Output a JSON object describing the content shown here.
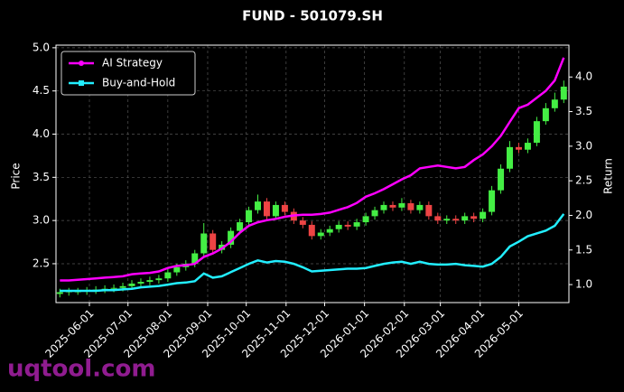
{
  "chart_data": {
    "type": "candlestick",
    "title": "FUND - 501079.SH",
    "watermark": "uqtool.com",
    "ylabel": "Price",
    "y2label": "Return",
    "up_color": "#44ee44",
    "down_color": "#ee4444",
    "grid": true,
    "legend": "upper left",
    "xlim": [
      "2025-05-06",
      "2026-06-09"
    ],
    "xticks": [
      "2025-06-01",
      "2025-07-01",
      "2025-08-01",
      "2025-09-01",
      "2025-10-01",
      "2025-11-01",
      "2025-12-01",
      "2026-01-01",
      "2026-02-01",
      "2026-03-01",
      "2026-04-01",
      "2026-05-01"
    ],
    "ylim": [
      2.05,
      5.03
    ],
    "yticks": [
      2.5,
      {
        "value": 3,
        "label": "3.0"
      },
      3.5,
      {
        "value": 4,
        "label": "4.0"
      },
      4.5,
      {
        "value": 5,
        "label": "5.0"
      }
    ],
    "y2lim": [
      0.74,
      4.46
    ],
    "y2ticks": [
      {
        "value": 1,
        "label": "1.0"
      },
      1.5,
      {
        "value": 2,
        "label": "2.0"
      },
      2.5,
      {
        "value": 3,
        "label": "3.0"
      },
      3.5,
      {
        "value": 4,
        "label": "4.0"
      }
    ],
    "x": [
      "2025-05-09",
      "2025-05-16",
      "2025-05-23",
      "2025-05-30",
      "2025-06-06",
      "2025-06-13",
      "2025-06-20",
      "2025-06-27",
      "2025-07-04",
      "2025-07-11",
      "2025-07-18",
      "2025-07-25",
      "2025-08-01",
      "2025-08-08",
      "2025-08-15",
      "2025-08-22",
      "2025-08-29",
      "2025-09-05",
      "2025-09-12",
      "2025-09-19",
      "2025-09-26",
      "2025-10-03",
      "2025-10-10",
      "2025-10-17",
      "2025-10-24",
      "2025-10-31",
      "2025-11-07",
      "2025-11-14",
      "2025-11-21",
      "2025-11-28",
      "2025-12-05",
      "2025-12-12",
      "2025-12-19",
      "2025-12-26",
      "2026-01-02",
      "2026-01-09",
      "2026-01-16",
      "2026-01-23",
      "2026-01-30",
      "2026-02-06",
      "2026-02-13",
      "2026-02-20",
      "2026-02-27",
      "2026-03-06",
      "2026-03-13",
      "2026-03-20",
      "2026-03-27",
      "2026-04-03",
      "2026-04-10",
      "2026-04-17",
      "2026-04-24",
      "2026-05-01",
      "2026-05-08",
      "2026-05-15",
      "2026-05-22",
      "2026-05-29",
      "2026-06-05"
    ],
    "open": [
      2.15,
      2.17,
      2.18,
      2.18,
      2.19,
      2.2,
      2.21,
      2.22,
      2.24,
      2.27,
      2.29,
      2.31,
      2.33,
      2.4,
      2.46,
      2.5,
      2.62,
      2.85,
      2.66,
      2.72,
      2.88,
      2.98,
      3.12,
      3.22,
      3.05,
      3.18,
      3.1,
      3.0,
      2.95,
      2.82,
      2.86,
      2.9,
      2.95,
      2.93,
      2.98,
      3.05,
      3.12,
      3.18,
      3.15,
      3.2,
      3.12,
      3.18,
      3.05,
      3.0,
      3.02,
      3.0,
      3.05,
      3.02,
      3.1,
      3.35,
      3.6,
      3.85,
      3.82,
      3.9,
      4.15,
      4.3,
      4.4
    ],
    "high": [
      2.21,
      2.22,
      2.22,
      2.23,
      2.24,
      2.25,
      2.26,
      2.28,
      2.31,
      2.33,
      2.35,
      2.37,
      2.44,
      2.5,
      2.54,
      2.66,
      2.97,
      2.89,
      2.76,
      2.92,
      3.02,
      3.16,
      3.3,
      3.26,
      3.22,
      3.22,
      3.14,
      3.04,
      2.99,
      2.9,
      2.94,
      2.99,
      2.99,
      3.02,
      3.09,
      3.16,
      3.22,
      3.22,
      3.26,
      3.24,
      3.22,
      3.22,
      3.09,
      3.06,
      3.06,
      3.09,
      3.09,
      3.14,
      3.4,
      3.65,
      3.92,
      3.9,
      3.95,
      4.2,
      4.36,
      4.48,
      4.62
    ],
    "low": [
      2.11,
      2.13,
      2.14,
      2.14,
      2.15,
      2.16,
      2.17,
      2.18,
      2.2,
      2.23,
      2.25,
      2.27,
      2.29,
      2.36,
      2.42,
      2.46,
      2.58,
      2.62,
      2.62,
      2.68,
      2.84,
      2.94,
      3.08,
      3.01,
      3.01,
      3.06,
      2.96,
      2.91,
      2.78,
      2.78,
      2.82,
      2.86,
      2.89,
      2.89,
      2.94,
      3.01,
      3.08,
      3.11,
      3.11,
      3.08,
      3.08,
      3.01,
      2.96,
      2.96,
      2.96,
      2.96,
      2.98,
      2.98,
      3.06,
      3.31,
      3.56,
      3.78,
      3.78,
      3.86,
      4.11,
      4.26,
      4.36
    ],
    "close": [
      2.17,
      2.18,
      2.18,
      2.19,
      2.2,
      2.21,
      2.22,
      2.24,
      2.27,
      2.29,
      2.31,
      2.33,
      2.4,
      2.46,
      2.5,
      2.62,
      2.85,
      2.66,
      2.72,
      2.88,
      2.98,
      3.12,
      3.22,
      3.05,
      3.18,
      3.1,
      3.0,
      2.95,
      2.82,
      2.86,
      2.9,
      2.95,
      2.93,
      2.98,
      3.05,
      3.12,
      3.18,
      3.15,
      3.2,
      3.12,
      3.18,
      3.05,
      3.0,
      3.02,
      3.0,
      3.05,
      3.02,
      3.1,
      3.35,
      3.6,
      3.85,
      3.82,
      3.9,
      4.15,
      4.3,
      4.4,
      4.55
    ],
    "series": [
      {
        "name": "AI Strategy",
        "color": "#ff00ff",
        "marker": "circle",
        "axis": "y2",
        "values": [
          1.06,
          1.06,
          1.07,
          1.08,
          1.09,
          1.1,
          1.11,
          1.12,
          1.15,
          1.16,
          1.17,
          1.19,
          1.24,
          1.27,
          1.28,
          1.3,
          1.4,
          1.45,
          1.52,
          1.62,
          1.75,
          1.85,
          1.9,
          1.93,
          1.95,
          1.98,
          2.0,
          2.01,
          2.01,
          2.02,
          2.04,
          2.08,
          2.12,
          2.18,
          2.27,
          2.32,
          2.38,
          2.45,
          2.52,
          2.58,
          2.68,
          2.7,
          2.72,
          2.7,
          2.68,
          2.7,
          2.8,
          2.88,
          3.0,
          3.15,
          3.35,
          3.55,
          3.6,
          3.7,
          3.8,
          3.95,
          4.28
        ]
      },
      {
        "name": "Buy-and-Hold",
        "color": "#22eeff",
        "marker": "square",
        "axis": "y2",
        "values": [
          0.91,
          0.91,
          0.91,
          0.91,
          0.91,
          0.92,
          0.92,
          0.93,
          0.94,
          0.96,
          0.97,
          0.98,
          1.0,
          1.02,
          1.03,
          1.05,
          1.16,
          1.1,
          1.12,
          1.18,
          1.24,
          1.3,
          1.35,
          1.32,
          1.34,
          1.33,
          1.3,
          1.25,
          1.19,
          1.2,
          1.21,
          1.22,
          1.23,
          1.23,
          1.24,
          1.27,
          1.3,
          1.32,
          1.33,
          1.3,
          1.33,
          1.3,
          1.29,
          1.29,
          1.3,
          1.28,
          1.27,
          1.26,
          1.3,
          1.4,
          1.55,
          1.62,
          1.7,
          1.74,
          1.78,
          1.85,
          2.02
        ]
      }
    ]
  }
}
